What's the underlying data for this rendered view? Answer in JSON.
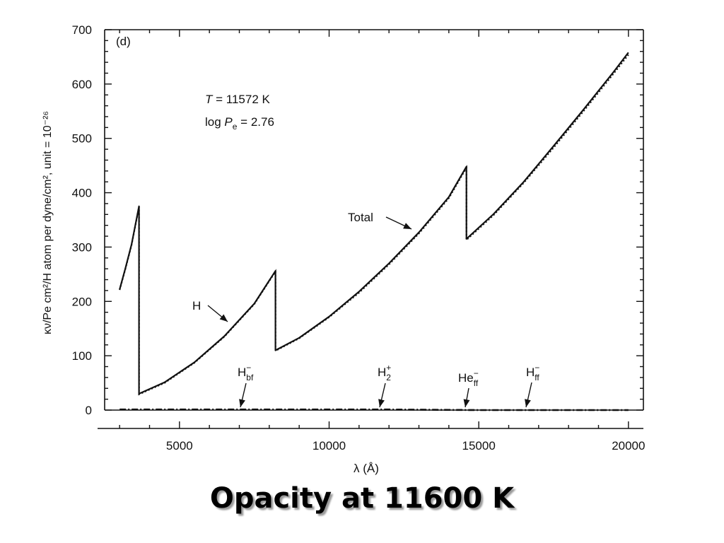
{
  "slide": {
    "title": "Opacity at 11600 K"
  },
  "chart_data": {
    "type": "line",
    "panel_label": "(d)",
    "xlabel": "λ (Å)",
    "ylabel": "κν/Pe cm²/H atom per dyne/cm², unit = 10⁻²⁶",
    "xlim": [
      2500,
      20500
    ],
    "ylim": [
      0,
      700
    ],
    "x_ticks": [
      5000,
      10000,
      15000,
      20000
    ],
    "x_tick_labels": [
      "5000",
      "10000",
      "15000",
      "20000"
    ],
    "y_ticks": [
      0,
      100,
      200,
      300,
      400,
      500,
      600,
      700
    ],
    "y_tick_labels": [
      "0",
      "100",
      "200",
      "300",
      "400",
      "500",
      "600",
      "700"
    ],
    "conditions": {
      "temperature": {
        "symbol": "T",
        "text": " = 11572 K"
      },
      "pressure": {
        "prefix": "log ",
        "symbol": "P",
        "subscript": "e",
        "text": " = 2.76"
      }
    },
    "series": [
      {
        "name": "Total",
        "style": "solid",
        "x": [
          3000,
          3200,
          3400,
          3647,
          3647,
          4500,
          5500,
          6500,
          7500,
          8206,
          8206,
          9000,
          10000,
          11000,
          12000,
          13000,
          14000,
          14588,
          14588,
          15500,
          16500,
          17500,
          18500,
          19500,
          20000
        ],
        "y": [
          222,
          262,
          305,
          375,
          30,
          51,
          88,
          136,
          196,
          256,
          110,
          133,
          172,
          218,
          270,
          327,
          392,
          448,
          315,
          361,
          420,
          486,
          553,
          622,
          658
        ]
      },
      {
        "name": "H",
        "style": "dotted",
        "x": [
          3000,
          3200,
          3400,
          3647,
          3647,
          4500,
          5500,
          6500,
          7500,
          8206,
          8206,
          9000,
          10000,
          11000,
          12000,
          13000,
          14000,
          14588,
          14588,
          15500,
          16500,
          17500,
          18500,
          19500,
          20000
        ],
        "y": [
          221,
          261,
          304,
          374,
          29,
          50,
          87,
          135,
          195,
          255,
          109,
          132,
          171,
          216,
          268,
          325,
          390,
          446,
          313,
          359,
          418,
          483,
          550,
          619,
          654
        ]
      },
      {
        "name": "H⁻bf / H₂⁺ / He⁻ff / H⁻ff",
        "style": "dash-dot",
        "x": [
          3000,
          6000,
          9000,
          12000,
          15000,
          18000,
          20000
        ],
        "y": [
          1,
          1,
          1,
          1,
          0,
          0,
          0
        ]
      }
    ],
    "annotations": [
      {
        "id": "total",
        "parts": [
          {
            "t": "Total"
          }
        ]
      },
      {
        "id": "h",
        "parts": [
          {
            "t": "H"
          }
        ]
      },
      {
        "id": "hbf",
        "parts": [
          {
            "t": "H"
          },
          {
            "t": "−",
            "sup": true
          },
          {
            "t": "bf",
            "sub": true
          }
        ]
      },
      {
        "id": "h2plus",
        "parts": [
          {
            "t": "H"
          },
          {
            "t": "+",
            "sup": true
          },
          {
            "t": "2",
            "sub": true
          }
        ]
      },
      {
        "id": "heff",
        "parts": [
          {
            "t": "He"
          },
          {
            "t": "−",
            "sup": true
          },
          {
            "t": "ff",
            "sub": true
          }
        ]
      },
      {
        "id": "hff",
        "parts": [
          {
            "t": "H"
          },
          {
            "t": "−",
            "sup": true
          },
          {
            "t": "ff",
            "sub": true
          }
        ]
      }
    ]
  }
}
